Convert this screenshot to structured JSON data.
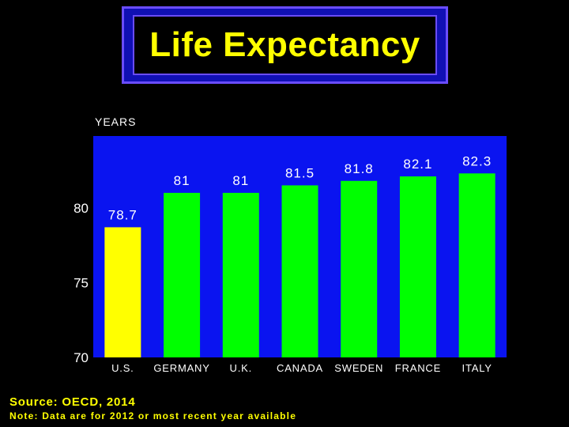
{
  "title": "Life Expectancy",
  "source": "Source: OECD, 2014",
  "note": "Note: Data are for 2012 or most recent year available",
  "colors": {
    "plot_background": "#0a14f0",
    "highlight_bar": "#ffff00",
    "bar": "#00ff00",
    "title_text": "#ffff00",
    "title_frame": "#1010b4"
  },
  "chart_data": {
    "type": "bar",
    "title": "Life Expectancy",
    "ylabel": "YEARS",
    "xlabel": "",
    "ylim": [
      70,
      84.8
    ],
    "yticks": [
      70,
      75,
      80
    ],
    "grid": false,
    "legend": "none",
    "categories": [
      "U.S.",
      "GERMANY",
      "U.K.",
      "CANADA",
      "SWEDEN",
      "FRANCE",
      "ITALY"
    ],
    "values": [
      78.7,
      81,
      81,
      81.5,
      81.8,
      82.1,
      82.3
    ],
    "value_labels": [
      "78.7",
      "81",
      "81",
      "81.5",
      "81.8",
      "82.1",
      "82.3"
    ],
    "highlight_index": 0
  }
}
